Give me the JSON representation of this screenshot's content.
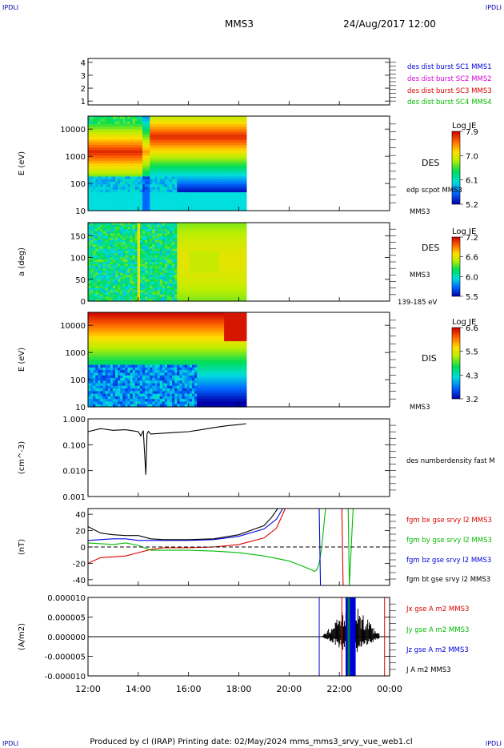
{
  "corner_text": "IPDLI",
  "header": {
    "spacecraft": "MMS3",
    "datetime": "24/Aug/2017 12:00"
  },
  "footer": {
    "text": "Produced by cl (IRAP)   Printing date: 02/May/2024   mms_mms3_srvy_vue_web1.cl"
  },
  "time_axis": {
    "start_hour": 12,
    "end_hour": 24,
    "ticks": [
      "12:00",
      "14:00",
      "16:00",
      "18:00",
      "20:00",
      "22:00",
      "00:00"
    ]
  },
  "colors": {
    "blue": "#0000dd",
    "magenta": "#dd00dd",
    "red": "#dd0000",
    "green": "#00bb00",
    "black": "#000000"
  },
  "chart_data": [
    {
      "id": "panel1",
      "type": "line",
      "ylabel": "",
      "yticks": [
        "1",
        "2",
        "3",
        "4"
      ],
      "ylim": [
        0.7,
        4.3
      ],
      "legend": [
        {
          "text": "des dist burst SC1 MMS1",
          "color": "#0000dd"
        },
        {
          "text": "des dist burst SC2 MMS2",
          "color": "#dd00dd"
        },
        {
          "text": "des dist burst SC3 MMS3",
          "color": "#dd0000"
        },
        {
          "text": "des dist burst SC4 MMS4",
          "color": "#00bb00"
        }
      ],
      "series": []
    },
    {
      "id": "panel2",
      "type": "heatmap",
      "ylabel": "E (eV)",
      "yticks": [
        "10",
        "100",
        "1000",
        "10000"
      ],
      "ylog": true,
      "ylim": [
        10,
        30000
      ],
      "data_end_hour": 18.3,
      "labels": [
        "DES",
        "edp scpot MMS3",
        "MMS3"
      ],
      "colorbar": {
        "title": "Log JE",
        "ticks": [
          "7.9",
          "7.0",
          "6.1",
          "5.2"
        ]
      }
    },
    {
      "id": "panel3",
      "type": "heatmap",
      "ylabel": "a (deg)",
      "yticks": [
        "0",
        "50",
        "100",
        "150"
      ],
      "ylim": [
        0,
        180
      ],
      "data_end_hour": 18.3,
      "labels": [
        "DES",
        "MMS3",
        "139-185 eV"
      ],
      "colorbar": {
        "title": "Log JE",
        "ticks": [
          "7.2",
          "6.6",
          "6.0",
          "5.5"
        ]
      }
    },
    {
      "id": "panel4",
      "type": "heatmap",
      "ylabel": "E (eV)",
      "yticks": [
        "10",
        "100",
        "1000",
        "10000"
      ],
      "ylog": true,
      "ylim": [
        10,
        30000
      ],
      "data_end_hour": 18.3,
      "labels": [
        "DIS",
        "MMS3"
      ],
      "colorbar": {
        "title": "Log JE",
        "ticks": [
          "6.6",
          "5.5",
          "4.3",
          "3.2"
        ]
      }
    },
    {
      "id": "panel5",
      "type": "line",
      "ylabel": "(cm^-3)",
      "yticks": [
        "0.001",
        "0.010",
        "0.100",
        "1.000"
      ],
      "ylog": true,
      "ylim": [
        0.001,
        1.0
      ],
      "labels": [
        "des numberdensity fast M"
      ],
      "series": [
        {
          "color": "#000000",
          "x": [
            12.0,
            12.5,
            13.0,
            13.5,
            14.0,
            14.1,
            14.2,
            14.25,
            14.3,
            14.35,
            14.4,
            14.5,
            15.0,
            15.5,
            16.0,
            16.5,
            17.0,
            17.5,
            18.0,
            18.3
          ],
          "y": [
            0.32,
            0.42,
            0.36,
            0.38,
            0.32,
            0.22,
            0.35,
            0.05,
            0.007,
            0.26,
            0.33,
            0.26,
            0.28,
            0.3,
            0.32,
            0.38,
            0.46,
            0.54,
            0.6,
            0.65
          ]
        }
      ]
    },
    {
      "id": "panel6",
      "type": "line",
      "ylabel": "(nT)",
      "yticks": [
        "-40",
        "-20",
        "0",
        "20",
        "40"
      ],
      "ylim": [
        -47,
        47
      ],
      "labels": [
        "fgm bx gse srvy l2 MMS3",
        "fgm by gse srvy l2 MMS3",
        "fgm bz gse srvy l2 MMS3",
        "fgm bt gse srvy l2 MMS3"
      ],
      "label_colors": [
        "#dd0000",
        "#00bb00",
        "#0000dd",
        "#000000"
      ],
      "series": [
        {
          "color": "#dd0000",
          "x": [
            12.0,
            12.5,
            13.0,
            13.5,
            14.0,
            14.5,
            15.0,
            16.0,
            17.0,
            18.0,
            19.0,
            19.5,
            19.85,
            22.1,
            22.15
          ],
          "y": [
            -20,
            -13,
            -12,
            -11,
            -7,
            -3,
            -1,
            -1,
            0,
            3,
            11,
            23,
            47,
            47,
            -47
          ]
        },
        {
          "color": "#00bb00",
          "x": [
            12.0,
            12.5,
            13.0,
            13.5,
            14.0,
            14.5,
            15.0,
            16.0,
            17.0,
            18.0,
            19.0,
            20.0,
            20.5,
            20.9,
            21.0,
            21.1,
            21.2,
            21.3,
            21.45,
            22.35,
            22.4,
            22.55
          ],
          "y": [
            5,
            4,
            3,
            5,
            2,
            -4,
            -4,
            -4,
            -5,
            -7,
            -11,
            -17,
            -23,
            -28,
            -30,
            -28,
            -20,
            0,
            47,
            47,
            -47,
            47
          ]
        },
        {
          "color": "#0000dd",
          "x": [
            12.0,
            12.5,
            13.0,
            13.5,
            14.0,
            14.5,
            15.0,
            16.0,
            17.0,
            18.0,
            19.0,
            19.5,
            19.75,
            21.2,
            21.25
          ],
          "y": [
            8,
            9,
            10,
            10,
            8,
            8,
            8,
            8,
            9,
            13,
            22,
            34,
            47,
            47,
            -47
          ]
        },
        {
          "color": "#000000",
          "x": [
            12.0,
            12.5,
            13.0,
            13.5,
            14.0,
            14.5,
            15.0,
            16.0,
            17.0,
            18.0,
            19.0,
            19.3,
            19.55
          ],
          "y": [
            25,
            17,
            15,
            14,
            14,
            10,
            9,
            9,
            10,
            15,
            26,
            36,
            47
          ]
        }
      ]
    },
    {
      "id": "panel7",
      "type": "line",
      "ylabel": "(A/m2)",
      "yticks": [
        "-0.000010",
        "-0.000005",
        "0.000000",
        "0.000005",
        "0.000010"
      ],
      "ylim": [
        -1e-05,
        1e-05
      ],
      "labels": [
        "Jx gse A m2 MMS3",
        "Jy gse A m2 MMS3",
        "Jz gse A m2 MMS3",
        "J A m2 MMS3"
      ],
      "label_colors": [
        "#dd0000",
        "#00bb00",
        "#0000dd",
        "#000000"
      ],
      "series": []
    }
  ]
}
